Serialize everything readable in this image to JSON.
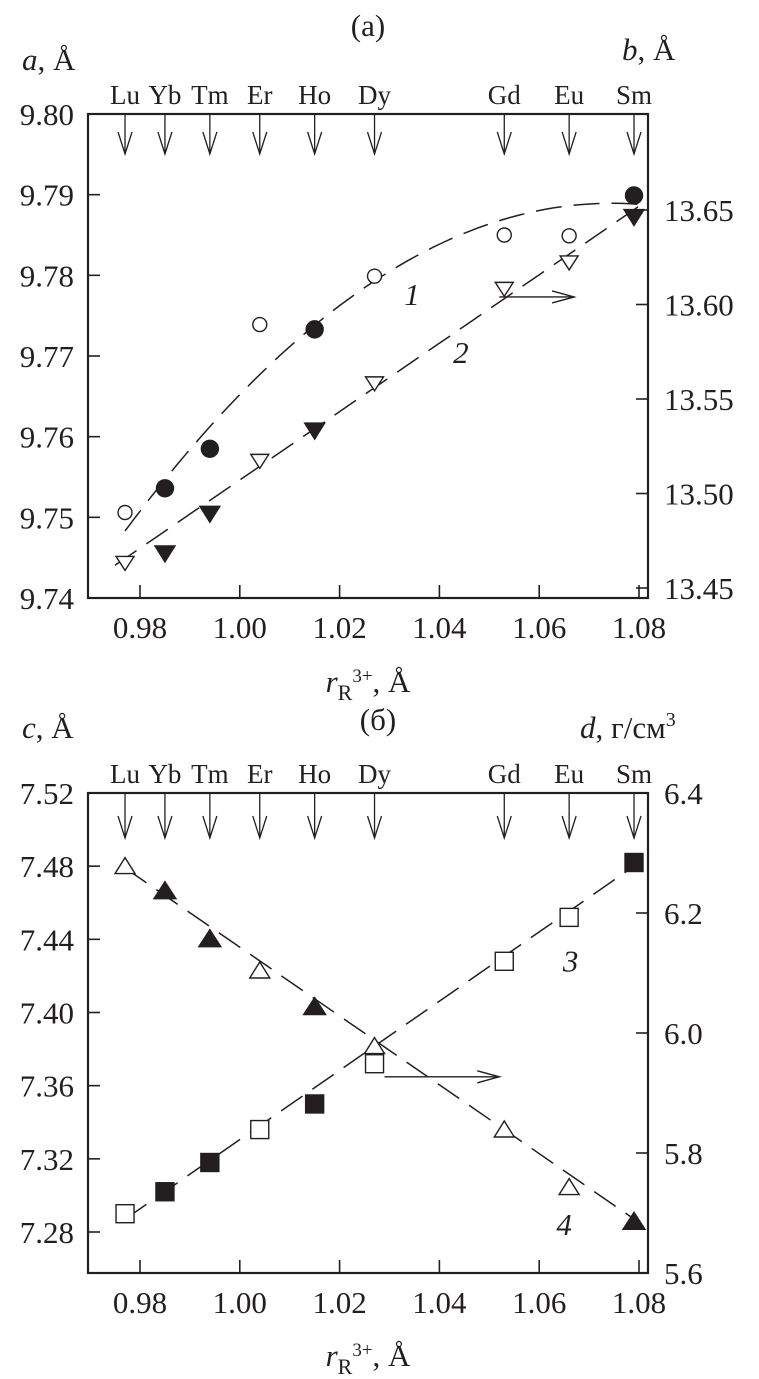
{
  "chart_data": [
    {
      "type": "scatter",
      "title": "(a)",
      "xlabel": "r_R3+, Å",
      "xlabel_main": "r",
      "xlabel_sub": "R",
      "xlabel_sup": "3+",
      "xlabel_unit": ", Å",
      "ylabel_left": "a, Å",
      "ylabel_left_var": "a",
      "ylabel_left_unit": ", Å",
      "ylabel_right": "b, Å",
      "ylabel_right_var": "b",
      "ylabel_right_unit": ", Å",
      "xlim": [
        0.9695,
        1.0817
      ],
      "ylim_left": [
        9.74,
        9.8
      ],
      "ylim_right": [
        13.45,
        13.65
      ],
      "xticks": [
        "0.98",
        "1.00",
        "1.02",
        "1.04",
        "1.06",
        "1.08"
      ],
      "yticks_left": [
        "9.80",
        "9.79",
        "9.78",
        "9.77",
        "9.76",
        "9.75",
        "9.74"
      ],
      "yticks_right": [
        "13.65",
        "13.60",
        "13.55",
        "13.50",
        "13.45"
      ],
      "elements": [
        {
          "name": "Lu",
          "r": 0.977
        },
        {
          "name": "Yb",
          "r": 0.985
        },
        {
          "name": "Tm",
          "r": 0.994
        },
        {
          "name": "Er",
          "r": 1.004
        },
        {
          "name": "Ho",
          "r": 1.015
        },
        {
          "name": "Dy",
          "r": 1.027
        },
        {
          "name": "Gd",
          "r": 1.053
        },
        {
          "name": "Eu",
          "r": 1.066
        },
        {
          "name": "Sm",
          "r": 1.079
        }
      ],
      "series": [
        {
          "name": "1",
          "label": "1",
          "axis": "left",
          "marker": "circle",
          "x": [
            0.977,
            0.985,
            0.994,
            1.004,
            1.015,
            1.027,
            1.053,
            1.066,
            1.079
          ],
          "y": [
            9.7506,
            9.7536,
            9.7585,
            9.7739,
            9.7733,
            9.7799,
            9.785,
            9.7849,
            9.7899
          ],
          "filled": [
            false,
            true,
            true,
            false,
            true,
            false,
            false,
            false,
            true
          ],
          "fit": [
            [
              0.977,
              9.7483
            ],
            [
              1.027,
              9.7793
            ],
            [
              1.08,
              9.7888
            ]
          ]
        },
        {
          "name": "2",
          "label": "2",
          "axis": "right",
          "marker": "triangle-down",
          "x": [
            0.977,
            0.985,
            0.994,
            1.004,
            1.015,
            1.027,
            1.053,
            1.066,
            1.079
          ],
          "y": [
            13.463,
            13.468,
            13.489,
            13.517,
            13.533,
            13.558,
            13.608,
            13.622,
            13.646
          ],
          "filled": [
            false,
            true,
            true,
            false,
            true,
            false,
            false,
            false,
            true
          ],
          "fit": [
            [
              0.975,
              13.462
            ],
            [
              1.027,
              13.556
            ],
            [
              1.08,
              13.652
            ]
          ]
        }
      ],
      "axis_arrow": {
        "series": "2",
        "direction": "right"
      }
    },
    {
      "type": "scatter",
      "title": "(б)",
      "xlabel": "r_R3+, Å",
      "xlabel_main": "r",
      "xlabel_sub": "R",
      "xlabel_sup": "3+",
      "xlabel_unit": ", Å",
      "ylabel_left": "c, Å",
      "ylabel_left_var": "c",
      "ylabel_left_unit": ", Å",
      "ylabel_right": "d, г/см3",
      "ylabel_right_var": "d",
      "ylabel_right_unit": ", г/см",
      "ylabel_right_sup": "3",
      "xlim": [
        0.9695,
        1.0817
      ],
      "ylim_left": [
        7.24,
        7.52
      ],
      "ylim_right": [
        5.6,
        6.4
      ],
      "xticks": [
        "0.98",
        "1.00",
        "1.02",
        "1.04",
        "1.06",
        "1.08"
      ],
      "yticks_left": [
        "7.52",
        "7.48",
        "7.44",
        "7.40",
        "7.36",
        "7.32",
        "7.28"
      ],
      "yticks_right": [
        "6.4",
        "6.2",
        "6.0",
        "5.8",
        "5.6"
      ],
      "elements": [
        {
          "name": "Lu",
          "r": 0.977
        },
        {
          "name": "Yb",
          "r": 0.985
        },
        {
          "name": "Tm",
          "r": 0.994
        },
        {
          "name": "Er",
          "r": 1.004
        },
        {
          "name": "Ho",
          "r": 1.015
        },
        {
          "name": "Dy",
          "r": 1.027
        },
        {
          "name": "Gd",
          "r": 1.053
        },
        {
          "name": "Eu",
          "r": 1.066
        },
        {
          "name": "Sm",
          "r": 1.079
        }
      ],
      "series": [
        {
          "name": "3",
          "label": "3",
          "axis": "left",
          "marker": "square",
          "x": [
            0.977,
            0.985,
            0.994,
            1.004,
            1.015,
            1.027,
            1.053,
            1.066,
            1.079
          ],
          "y": [
            7.29,
            7.302,
            7.318,
            7.336,
            7.35,
            7.372,
            7.428,
            7.452,
            7.482
          ],
          "filled": [
            false,
            true,
            true,
            false,
            true,
            false,
            false,
            false,
            true
          ],
          "fit": [
            [
              0.977,
              7.287
            ],
            [
              1.079,
              7.48
            ]
          ]
        },
        {
          "name": "4",
          "label": "4",
          "axis": "right",
          "marker": "triangle-up",
          "x": [
            0.977,
            0.985,
            0.994,
            1.004,
            1.015,
            1.027,
            1.053,
            1.066,
            1.079
          ],
          "y": [
            6.279,
            6.238,
            6.158,
            6.105,
            6.045,
            5.979,
            5.84,
            5.744,
            5.687
          ],
          "filled": [
            false,
            true,
            true,
            false,
            true,
            false,
            false,
            false,
            true
          ],
          "fit": [
            [
              0.977,
              6.275
            ],
            [
              1.079,
              5.69
            ]
          ]
        }
      ],
      "axis_arrow": {
        "series": "4",
        "direction": "right"
      }
    }
  ]
}
